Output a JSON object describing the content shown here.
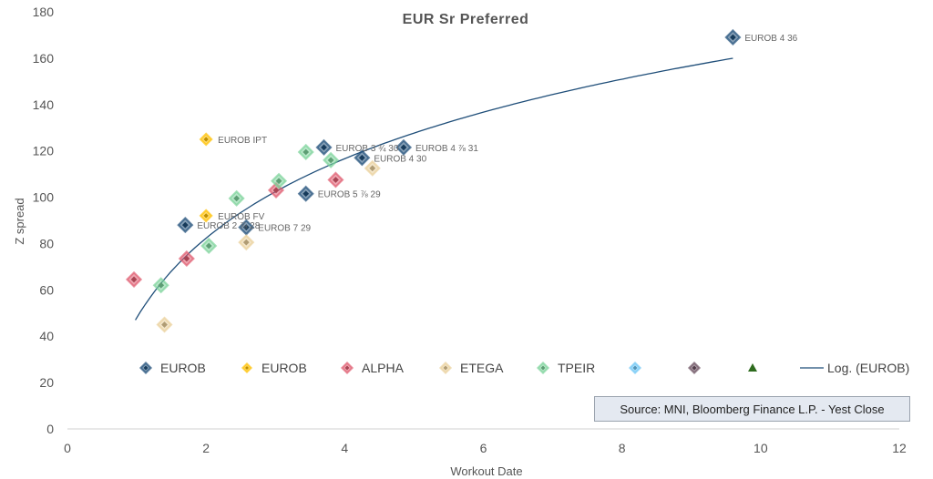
{
  "chart_data": {
    "type": "scatter",
    "title": "EUR Sr Preferred",
    "xlabel": "Workout Date",
    "ylabel": "Z spread",
    "xlim": [
      0,
      12
    ],
    "ylim": [
      0,
      180
    ],
    "xticks": [
      "0",
      "2",
      "4",
      "6",
      "8",
      "10",
      "12"
    ],
    "yticks": [
      "0",
      "20",
      "40",
      "60",
      "80",
      "100",
      "120",
      "140",
      "160",
      "180"
    ],
    "grid": false,
    "legend_position": "bottom",
    "series": [
      {
        "name": "EUROB",
        "color": "#1f4e79",
        "marker": "diamond",
        "points": [
          {
            "x": 1.7,
            "y": 88,
            "label": "EUROB 2 ⅞ 28"
          },
          {
            "x": 2.58,
            "y": 87,
            "label": "EUROB 7 29"
          },
          {
            "x": 3.44,
            "y": 101.5,
            "label": "EUROB 5 ⅞ 29"
          },
          {
            "x": 3.7,
            "y": 121.5,
            "label": "EUROB 3 ¾ 30"
          },
          {
            "x": 4.25,
            "y": 117,
            "label": "EUROB 4 30"
          },
          {
            "x": 4.85,
            "y": 121.5,
            "label": "EUROB 4 ⅞ 31"
          },
          {
            "x": 9.6,
            "y": 169,
            "label": "EUROB 4 36"
          }
        ]
      },
      {
        "name": "EUROB",
        "color": "#ffc000",
        "marker": "diamond-small",
        "points": [
          {
            "x": 2.0,
            "y": 125,
            "label": "EUROB IPT"
          },
          {
            "x": 2.0,
            "y": 92,
            "label": "EUROB FV"
          }
        ]
      },
      {
        "name": "ALPHA",
        "color": "#e05b6f",
        "marker": "diamond",
        "points": [
          {
            "x": 0.96,
            "y": 64.5
          },
          {
            "x": 1.72,
            "y": 73.5
          },
          {
            "x": 3.01,
            "y": 103
          },
          {
            "x": 3.87,
            "y": 107.5
          }
        ]
      },
      {
        "name": "ETEGA",
        "color": "#ead09a",
        "marker": "diamond",
        "points": [
          {
            "x": 1.4,
            "y": 45
          },
          {
            "x": 2.58,
            "y": 80.5
          },
          {
            "x": 4.4,
            "y": 112.5
          }
        ]
      },
      {
        "name": "TPEIR",
        "color": "#7cd39a",
        "marker": "diamond",
        "points": [
          {
            "x": 1.35,
            "y": 62
          },
          {
            "x": 2.04,
            "y": 79
          },
          {
            "x": 2.44,
            "y": 99.5
          },
          {
            "x": 3.05,
            "y": 107
          },
          {
            "x": 3.44,
            "y": 119.5
          },
          {
            "x": 3.8,
            "y": 116
          }
        ]
      }
    ],
    "legend": [
      {
        "label": "EUROB",
        "color": "#1f4e79",
        "marker": "diamond"
      },
      {
        "label": "EUROB",
        "color": "#ffc000",
        "marker": "diamond-small"
      },
      {
        "label": "ALPHA",
        "color": "#e05b6f",
        "marker": "diamond"
      },
      {
        "label": "ETEGA",
        "color": "#ead09a",
        "marker": "diamond"
      },
      {
        "label": "TPEIR",
        "color": "#7cd39a",
        "marker": "diamond"
      },
      {
        "label": "",
        "color": "#6ec6f5",
        "marker": "diamond"
      },
      {
        "label": "",
        "color": "#6b5060",
        "marker": "diamond"
      },
      {
        "label": "",
        "color": "#2e6b1e",
        "marker": "triangle"
      },
      {
        "label": "Log. (EUROB)",
        "color": "#1f4e79",
        "marker": "line"
      }
    ],
    "trendline": {
      "name": "Log. (EUROB)",
      "type": "logarithmic",
      "a": 48,
      "b": 49.5,
      "x_from": 0.98,
      "x_to": 9.6,
      "color": "#1f4e79"
    },
    "source": "Source: MNI, Bloomberg Finance L.P. - Yest Close"
  }
}
